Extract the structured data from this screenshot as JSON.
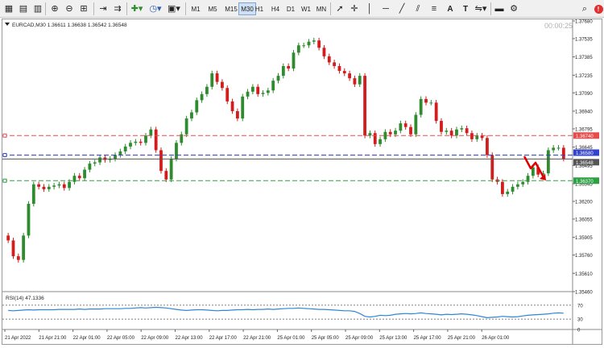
{
  "toolbar": {
    "timeframes": [
      "M1",
      "M5",
      "M15",
      "M30",
      "H1",
      "H4",
      "D1",
      "W1",
      "MN"
    ],
    "active_timeframe": "M30"
  },
  "chart": {
    "symbol_line": "EURCAD,M30  1.36611 1.36638 1.36542 1.36548",
    "countdown": "00:00:25",
    "price_labels": [
      "1.37680",
      "1.37535",
      "1.37385",
      "1.37235",
      "1.37090",
      "1.36940",
      "1.36795",
      "1.36645",
      "1.36495",
      "1.36345",
      "1.36200",
      "1.36055",
      "1.35905",
      "1.35760",
      "1.35610",
      "1.35460"
    ],
    "h_lines": [
      {
        "label": "1.36740",
        "value": 1.3674,
        "color": "#e74c4c"
      },
      {
        "label": "1.36580",
        "value": 1.3658,
        "color": "#3344cc"
      },
      {
        "label": "1.36548",
        "value": 1.36548,
        "color": "#555555"
      },
      {
        "label": "1.36370",
        "value": 1.3637,
        "color": "#2ea043"
      }
    ],
    "x_labels": [
      "21 Apr 2022",
      "21 Apr 21:00",
      "22 Apr 01:00",
      "22 Apr 05:00",
      "22 Apr 09:00",
      "22 Apr 13:00",
      "22 Apr 17:00",
      "22 Apr 21:00",
      "25 Apr 01:00",
      "25 Apr 05:00",
      "25 Apr 09:00",
      "25 Apr 13:00",
      "25 Apr 17:00",
      "25 Apr 21:00",
      "26 Apr 01:00"
    ],
    "colors": {
      "bull": "#2e8b2e",
      "bear": "#d21d1d",
      "arrow": "#e00000",
      "rsi_line": "#2f86d6"
    }
  },
  "rsi": {
    "label": "RSI(14) 47.1336",
    "levels": [
      "70",
      "30",
      "0"
    ]
  },
  "chart_data": {
    "type": "candlestick",
    "symbol": "EURCAD",
    "timeframe": "M30",
    "ylim": [
      1.3546,
      1.3768
    ],
    "close_series": [
      1.3588,
      1.3575,
      1.3572,
      1.3592,
      1.3618,
      1.3634,
      1.3632,
      1.363,
      1.3632,
      1.3633,
      1.3634,
      1.3631,
      1.3636,
      1.3641,
      1.3639,
      1.3646,
      1.3651,
      1.3652,
      1.3656,
      1.3654,
      1.3655,
      1.3658,
      1.3661,
      1.3665,
      1.3668,
      1.3669,
      1.3668,
      1.3674,
      1.3679,
      1.3662,
      1.3645,
      1.3638,
      1.3655,
      1.3668,
      1.3675,
      1.3688,
      1.3693,
      1.3703,
      1.3708,
      1.3714,
      1.3725,
      1.3718,
      1.3713,
      1.3702,
      1.3694,
      1.3688,
      1.3706,
      1.371,
      1.3714,
      1.3708,
      1.3709,
      1.3711,
      1.3719,
      1.3723,
      1.3731,
      1.3729,
      1.3742,
      1.3748,
      1.3748,
      1.3751,
      1.3752,
      1.3746,
      1.3739,
      1.3734,
      1.3731,
      1.3727,
      1.3725,
      1.3721,
      1.3716,
      1.3723,
      1.3674,
      1.3676,
      1.3667,
      1.3671,
      1.3677,
      1.3675,
      1.3678,
      1.3684,
      1.3681,
      1.3675,
      1.3691,
      1.3704,
      1.3701,
      1.3701,
      1.3686,
      1.3677,
      1.3678,
      1.3674,
      1.3679,
      1.368,
      1.3676,
      1.3671,
      1.3674,
      1.3672,
      1.3658,
      1.3638,
      1.3636,
      1.3626,
      1.3628,
      1.3632,
      1.3634,
      1.3636,
      1.3641,
      1.3648,
      1.3642,
      1.3643,
      1.3662,
      1.3664,
      1.3664,
      1.3655
    ],
    "rsi_series": [
      55,
      54,
      55,
      56,
      57,
      56,
      57,
      57,
      57,
      57,
      58,
      58,
      58,
      58,
      59,
      58,
      59,
      59,
      59,
      60,
      60,
      60,
      60,
      61,
      61,
      62,
      63,
      62,
      63,
      64,
      63,
      62,
      60,
      58,
      56,
      55,
      56,
      57,
      57,
      56,
      55,
      54,
      55,
      55,
      56,
      57,
      57,
      58,
      57,
      58,
      58,
      59,
      58,
      59,
      60,
      61,
      61,
      62,
      61,
      60,
      59,
      58,
      58,
      57,
      56,
      55,
      54,
      54,
      52,
      46,
      38,
      36,
      38,
      41,
      40,
      41,
      44,
      45,
      46,
      45,
      46,
      48,
      46,
      45,
      44,
      42,
      44,
      43,
      44,
      45,
      44,
      42,
      40,
      37,
      34,
      35,
      36,
      38,
      37,
      36,
      37,
      39,
      41,
      42,
      43,
      44,
      45,
      47,
      48,
      47
    ],
    "rsi_ylim": [
      0,
      100
    ],
    "levels": {
      "upper_line": 1.3674,
      "current_line": 1.3658,
      "lower_line": 1.3637
    }
  }
}
